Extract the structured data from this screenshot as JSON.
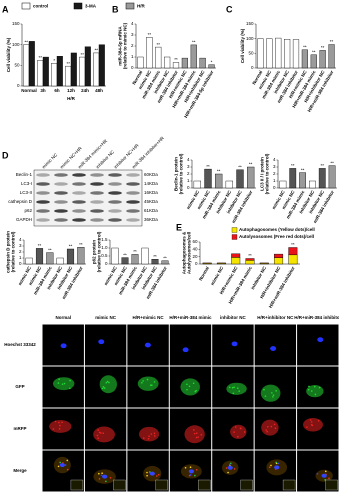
{
  "panels": [
    "A",
    "B",
    "C",
    "D",
    "E"
  ],
  "chart_data": [
    {
      "type": "bar",
      "ylabel": [
        "Cell viability (%)"
      ],
      "xlabel": "H/R",
      "categories": [
        "Normal",
        "3h",
        "6h",
        "12h",
        "24h",
        "48h"
      ],
      "legend": [
        {
          "name": "control",
          "color": "#ffffff"
        },
        {
          "name": "3-MA",
          "color": "#1a1a1a"
        },
        {
          "name": "H/R",
          "color": "#9a9a9a"
        }
      ],
      "series": [
        {
          "color": "#ffffff",
          "values": [
            100,
            62,
            55,
            48,
            70,
            80
          ],
          "sig": [
            "**",
            "**",
            "*",
            "**",
            "**",
            "**"
          ]
        },
        {
          "color": "#1a1a1a",
          "values": [
            108,
            70,
            72,
            80,
            95,
            100
          ],
          "sig": [
            null,
            null,
            null,
            null,
            null,
            null
          ]
        }
      ],
      "ylim": [
        0,
        150
      ],
      "yticks": [
        0,
        50,
        100,
        150
      ],
      "rotate": false
    },
    {
      "type": "bar",
      "ylabel": [
        "miR-384-5p mRNA",
        "(relative to mimic NC)"
      ],
      "categories": [
        "Normal",
        "mimic NC",
        "miR-384 mimic",
        "inhibitor NC",
        "miR-384 inhibitor",
        "H/R+mimic NC",
        "H/R+miR-384 mimic",
        "H/R+inhibitor NC",
        "H/R+miR-384-5p inhibitor"
      ],
      "values": [
        1.0,
        2.8,
        1.9,
        1.0,
        0.5,
        0.9,
        2.1,
        0.9,
        0.3
      ],
      "colors": [
        "#ffffff",
        "#ffffff",
        "#ffffff",
        "#ffffff",
        "#ffffff",
        "#9a9a9a",
        "#9a9a9a",
        "#9a9a9a",
        "#9a9a9a"
      ],
      "sig": [
        null,
        "**",
        "**",
        null,
        "**",
        null,
        "**",
        null,
        "*"
      ],
      "ylim": [
        0,
        4
      ],
      "yticks": [
        0,
        1,
        2,
        3,
        4
      ],
      "rotate": true
    },
    {
      "type": "bar",
      "ylabel": [
        "Cell viability (%)"
      ],
      "categories": [
        "Normal",
        "mimic NC",
        "miR-384 mimic",
        "inhibitor NC",
        "miR-384 inhibitor",
        "H/R+mimic NC",
        "H/R+miR-384 mimic",
        "H/R+inhibitor NC",
        "H/R+miR-384 inhibitor"
      ],
      "values": [
        100,
        100,
        102,
        98,
        97,
        62,
        45,
        60,
        80
      ],
      "colors": [
        "#ffffff",
        "#ffffff",
        "#ffffff",
        "#ffffff",
        "#ffffff",
        "#9a9a9a",
        "#9a9a9a",
        "#9a9a9a",
        "#9a9a9a"
      ],
      "sig": [
        null,
        null,
        null,
        null,
        null,
        "**",
        "**",
        "**",
        "**"
      ],
      "ylim": [
        0,
        150
      ],
      "yticks": [
        0,
        50,
        100,
        150
      ],
      "rotate": true
    },
    {
      "type": "bar",
      "ylabel": [
        "Beclin-1 protein",
        "(relative to control)"
      ],
      "categories": [
        "mimic NC",
        "mimic NC",
        "miR-384 mimic",
        "inhibitor NC",
        "inhibitor NC",
        "miR-384 inhibitor"
      ],
      "values": [
        1.0,
        2.7,
        2.0,
        1.0,
        2.6,
        3.0
      ],
      "colors": [
        "#ffffff",
        "#555555",
        "#9a9a9a",
        "#ffffff",
        "#555555",
        "#9a9a9a"
      ],
      "sig": [
        null,
        "**",
        "**",
        null,
        "**",
        "**"
      ],
      "ylim": [
        0,
        4
      ],
      "yticks": [
        0,
        1,
        2,
        3,
        4
      ],
      "rotate": true
    },
    {
      "type": "bar",
      "ylabel": [
        "LC3 II / I protein",
        "(relative to control)"
      ],
      "categories": [
        "mimic NC",
        "mimic NC",
        "miR-384 mimic",
        "inhibitor NC",
        "inhibitor NC",
        "miR-384 inhibitor"
      ],
      "values": [
        1.0,
        2.8,
        2.2,
        1.0,
        2.8,
        3.2
      ],
      "colors": [
        "#ffffff",
        "#555555",
        "#9a9a9a",
        "#ffffff",
        "#555555",
        "#9a9a9a"
      ],
      "sig": [
        null,
        "**",
        "**",
        null,
        "**",
        "**"
      ],
      "ylim": [
        0,
        4
      ],
      "yticks": [
        0,
        1,
        2,
        3,
        4
      ],
      "rotate": true
    },
    {
      "type": "bar",
      "ylabel": [
        "cathepsin D protein",
        "(relative to control)"
      ],
      "categories": [
        "mimic NC",
        "mimic NC",
        "miR-384 mimic",
        "inhibitor NC",
        "inhibitor NC",
        "miR-384 inhibitor"
      ],
      "values": [
        1.0,
        2.6,
        1.9,
        1.0,
        2.5,
        2.8
      ],
      "colors": [
        "#ffffff",
        "#555555",
        "#9a9a9a",
        "#ffffff",
        "#555555",
        "#9a9a9a"
      ],
      "sig": [
        null,
        "**",
        "**",
        null,
        "**",
        "**"
      ],
      "ylim": [
        0,
        4
      ],
      "yticks": [
        0,
        1,
        2,
        3,
        4
      ],
      "rotate": true
    },
    {
      "type": "bar",
      "ylabel": [
        "p62 protein",
        "(relative to control)"
      ],
      "categories": [
        "mimic NC",
        "mimic NC",
        "miR-384 mimic",
        "inhibitor NC",
        "inhibitor NC",
        "miR-384 inhibitor"
      ],
      "values": [
        1.0,
        0.4,
        0.6,
        1.0,
        0.3,
        0.2
      ],
      "colors": [
        "#ffffff",
        "#555555",
        "#9a9a9a",
        "#ffffff",
        "#555555",
        "#9a9a9a"
      ],
      "sig": [
        null,
        "**",
        "**",
        null,
        "**",
        "**"
      ],
      "ylim": [
        0,
        1.5
      ],
      "yticks": [
        0,
        0.5,
        {
          "value": 1,
          "label": "1.0"
        },
        1.5
      ],
      "rotate": true
    },
    {
      "type": "stacked_bar",
      "ylabel": [
        "Autophagosomes &",
        "Autolysosomes/cell"
      ],
      "categories": [
        "Normal",
        "mimic NC",
        "H/R+mimic NC",
        "H/R+miR-384 mimic",
        "inhibitor NC",
        "H/R+inhibitor NC",
        "H/R+miR-384 inhibitor"
      ],
      "series": [
        {
          "name": "Autophagosomes (Yellow dots)/cell",
          "color": "#f5e400",
          "values": [
            2,
            2,
            18,
            10,
            2,
            17,
            25
          ]
        },
        {
          "name": "Autolysosomes (Free red dots)/cell",
          "color": "#e8141a",
          "values": [
            1,
            1,
            10,
            5,
            1,
            10,
            20
          ]
        }
      ],
      "sig": [
        null,
        null,
        null,
        "**",
        null,
        null,
        "**"
      ],
      "ylim": [
        0,
        60
      ],
      "yticks": [
        0,
        20,
        40,
        60
      ],
      "rotate": true
    }
  ],
  "blot": {
    "lanes": [
      "mimic NC",
      "mimic NC+HR",
      "miR-384 mimic+HR",
      "inhibitor NC",
      "inhibitor NC+HR",
      "miR-384 inhibitor+HR"
    ],
    "bands": [
      {
        "label": "Beclin-1",
        "kda": "60KDa"
      },
      {
        "label": "LC3-I",
        "kda": "14KDa"
      },
      {
        "label": "LC3-II",
        "kda": "16KDa"
      },
      {
        "label": "cathepsin D",
        "kda": "45KDa"
      },
      {
        "label": "p62",
        "kda": "61KDa"
      },
      {
        "label": "GAPDH",
        "kda": "36KDa"
      }
    ]
  },
  "microscopy": {
    "columns": [
      "Normal",
      "mimic NC",
      "H/R+mimic NC",
      "H/R+miR-384 mimic",
      "inhibitor NC",
      "H/R+inhibitor NC",
      "H/R+miR-384 inhibitor"
    ],
    "rows": [
      "Hoechst 33342",
      "GFP",
      "mRFP",
      "Merge"
    ]
  }
}
